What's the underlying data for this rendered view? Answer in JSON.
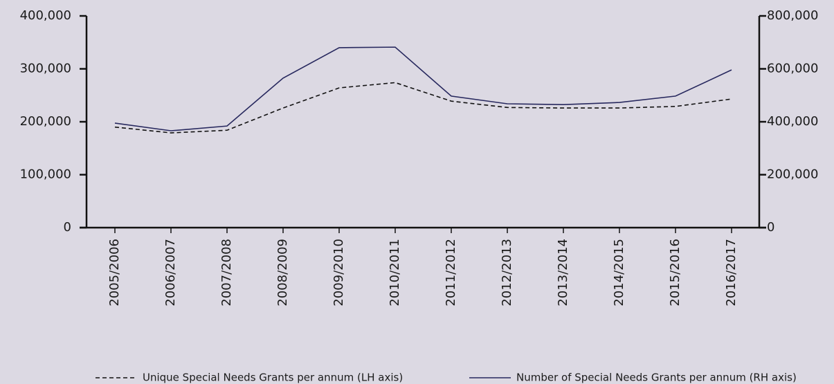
{
  "chart_data": {
    "type": "line",
    "categories": [
      "2005/2006",
      "2006/2007",
      "2007/2008",
      "2008/2009",
      "2009/2010",
      "2010/2011",
      "2011/2012",
      "2012/2013",
      "2013/2014",
      "2014/2015",
      "2015/2016",
      "2016/2017"
    ],
    "series": [
      {
        "name": "Unique Special Needs Grants per annum (LH axis)",
        "color": "#111111",
        "dashed": true,
        "values": [
          190000,
          179000,
          184000,
          226000,
          264000,
          274000,
          239000,
          227000,
          226000,
          226000,
          229000,
          243000
        ]
      },
      {
        "name": "Number of Special Needs Grants per annum (RH axis)",
        "color": "#27285e",
        "axis": "y2",
        "values": [
          395000,
          366000,
          384000,
          565000,
          680000,
          682000,
          497000,
          468000,
          465000,
          473000,
          497000,
          596000
        ]
      }
    ],
    "ylim": [
      0,
      400000
    ],
    "yticks": [
      0,
      {
        "value": 100000,
        "label": "100,000"
      },
      {
        "value": 200000,
        "label": "200,000"
      },
      {
        "value": 300000,
        "label": "300,000"
      },
      {
        "value": 400000,
        "label": "400,000"
      }
    ],
    "y2lim": [
      0,
      800000
    ],
    "y2ticks": [
      0,
      {
        "value": 200000,
        "label": "200,000"
      },
      {
        "value": 400000,
        "label": "400,000"
      },
      {
        "value": 600000,
        "label": "600,000"
      },
      {
        "value": 800000,
        "label": "800,000"
      }
    ],
    "grid": false
  }
}
